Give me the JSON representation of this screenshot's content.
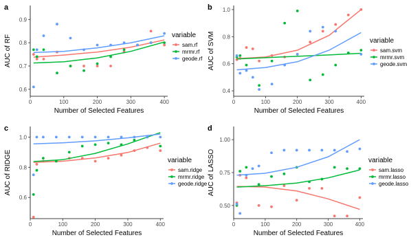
{
  "figure": {
    "legend_title": "variable",
    "colors": {
      "sam": "#F8766D",
      "mrmr": "#00BA38",
      "geode": "#619CFF"
    }
  },
  "chart_data": [
    {
      "tag": "a",
      "type": "scatter",
      "xlabel": "Number of Selected Features",
      "ylabel": "AUC of RF",
      "xlim": [
        0,
        410
      ],
      "ylim": [
        0.57,
        0.96
      ],
      "xticks": [
        0,
        100,
        200,
        300,
        400
      ],
      "yticks": [
        0.6,
        0.7,
        0.8,
        0.9
      ],
      "yticklabels": [
        "0.6",
        "0.7",
        "0.8",
        "0.9"
      ],
      "legend_position": "right",
      "series": [
        {
          "name": "sam.rf",
          "key": "sam",
          "points": [
            [
              10,
              0.75
            ],
            [
              20,
              0.73
            ],
            [
              40,
              0.73
            ],
            [
              80,
              0.76
            ],
            [
              120,
              0.7
            ],
            [
              160,
              0.7
            ],
            [
              200,
              0.7
            ],
            [
              240,
              0.7
            ],
            [
              280,
              0.76
            ],
            [
              320,
              0.79
            ],
            [
              360,
              0.85
            ],
            [
              400,
              0.79
            ]
          ],
          "fit": [
            [
              10,
              0.738
            ],
            [
              100,
              0.747
            ],
            [
              200,
              0.76
            ],
            [
              300,
              0.781
            ],
            [
              400,
              0.812
            ]
          ]
        },
        {
          "name": "mrmr.rf",
          "key": "mrmr",
          "points": [
            [
              10,
              0.77
            ],
            [
              20,
              0.74
            ],
            [
              40,
              0.77
            ],
            [
              80,
              0.67
            ],
            [
              120,
              0.7
            ],
            [
              160,
              0.68
            ],
            [
              200,
              0.71
            ],
            [
              240,
              0.74
            ],
            [
              280,
              0.77
            ],
            [
              320,
              0.79
            ],
            [
              360,
              0.8
            ],
            [
              400,
              0.8
            ]
          ],
          "fit": [
            [
              10,
              0.713
            ],
            [
              100,
              0.718
            ],
            [
              200,
              0.735
            ],
            [
              300,
              0.763
            ],
            [
              400,
              0.803
            ]
          ]
        },
        {
          "name": "geode.rf",
          "key": "geode",
          "points": [
            [
              10,
              0.61
            ],
            [
              20,
              0.77
            ],
            [
              40,
              0.83
            ],
            [
              80,
              0.88
            ],
            [
              120,
              0.82
            ],
            [
              160,
              0.77
            ],
            [
              200,
              0.79
            ],
            [
              240,
              0.79
            ],
            [
              280,
              0.8
            ],
            [
              320,
              0.79
            ],
            [
              360,
              0.8
            ],
            [
              400,
              0.84
            ]
          ],
          "fit": [
            [
              10,
              0.758
            ],
            [
              100,
              0.763
            ],
            [
              200,
              0.778
            ],
            [
              300,
              0.8
            ],
            [
              400,
              0.83
            ]
          ]
        }
      ]
    },
    {
      "tag": "b",
      "type": "scatter",
      "xlabel": "Number of Selected Features",
      "ylabel": "AUC of SVM",
      "xlim": [
        0,
        410
      ],
      "ylim": [
        0.36,
        1.03
      ],
      "xticks": [
        0,
        100,
        200,
        300,
        400
      ],
      "yticks": [
        0.4,
        0.6,
        0.8,
        1.0
      ],
      "yticklabels": [
        "0.4",
        "0.6",
        "0.8",
        "1.0"
      ],
      "legend_position": "right",
      "series": [
        {
          "name": "sam.svm",
          "key": "sam",
          "points": [
            [
              10,
              0.63
            ],
            [
              20,
              0.64
            ],
            [
              40,
              0.72
            ],
            [
              60,
              0.71
            ],
            [
              80,
              0.62
            ],
            [
              120,
              0.66
            ],
            [
              160,
              0.65
            ],
            [
              200,
              0.67
            ],
            [
              240,
              0.76
            ],
            [
              280,
              0.84
            ],
            [
              320,
              0.89
            ],
            [
              360,
              0.96
            ],
            [
              400,
              1.0
            ]
          ],
          "fit": [
            [
              10,
              0.638
            ],
            [
              100,
              0.65
            ],
            [
              200,
              0.7
            ],
            [
              300,
              0.81
            ],
            [
              400,
              1.0
            ]
          ]
        },
        {
          "name": "mrmr.svm",
          "key": "mrmr",
          "points": [
            [
              10,
              0.65
            ],
            [
              20,
              0.66
            ],
            [
              40,
              0.59
            ],
            [
              80,
              0.44
            ],
            [
              120,
              0.62
            ],
            [
              160,
              0.9
            ],
            [
              200,
              0.99
            ],
            [
              240,
              0.48
            ],
            [
              280,
              0.52
            ],
            [
              320,
              0.59
            ],
            [
              360,
              0.68
            ],
            [
              400,
              0.7
            ]
          ],
          "fit": [
            [
              10,
              0.635
            ],
            [
              100,
              0.645
            ],
            [
              200,
              0.655
            ],
            [
              300,
              0.665
            ],
            [
              400,
              0.677
            ]
          ]
        },
        {
          "name": "geode.svm",
          "key": "geode",
          "points": [
            [
              10,
              0.66
            ],
            [
              20,
              0.53
            ],
            [
              40,
              0.55
            ],
            [
              60,
              0.5
            ],
            [
              80,
              0.41
            ],
            [
              120,
              0.45
            ],
            [
              160,
              0.59
            ],
            [
              200,
              0.67
            ],
            [
              240,
              0.84
            ],
            [
              280,
              0.87
            ],
            [
              320,
              0.84
            ],
            [
              400,
              0.67
            ]
          ],
          "fit": [
            [
              10,
              0.555
            ],
            [
              100,
              0.572
            ],
            [
              200,
              0.615
            ],
            [
              300,
              0.7
            ],
            [
              400,
              0.83
            ]
          ]
        }
      ]
    },
    {
      "tag": "c",
      "type": "scatter",
      "xlabel": "Number of Selected Features",
      "ylabel": "AUC of RIDGE",
      "xlim": [
        0,
        410
      ],
      "ylim": [
        0.46,
        1.07
      ],
      "xticks": [
        0,
        100,
        200,
        300,
        400
      ],
      "yticks": [
        0.6,
        0.8,
        1.0
      ],
      "yticklabels": [
        "0.6",
        "0.8",
        "1.0"
      ],
      "legend_position": "right",
      "series": [
        {
          "name": "sam.ridge",
          "key": "sam",
          "points": [
            [
              10,
              0.47
            ],
            [
              20,
              0.82
            ],
            [
              40,
              0.84
            ],
            [
              80,
              0.84
            ],
            [
              120,
              0.86
            ],
            [
              160,
              0.86
            ],
            [
              200,
              0.84
            ],
            [
              240,
              0.86
            ],
            [
              280,
              0.88
            ],
            [
              320,
              0.91
            ],
            [
              360,
              0.93
            ],
            [
              400,
              0.91
            ]
          ],
          "fit": [
            [
              10,
              0.833
            ],
            [
              100,
              0.84
            ],
            [
              200,
              0.862
            ],
            [
              300,
              0.898
            ],
            [
              400,
              0.96
            ]
          ]
        },
        {
          "name": "mrmr.ridge",
          "key": "mrmr",
          "points": [
            [
              10,
              0.62
            ],
            [
              20,
              0.78
            ],
            [
              40,
              0.86
            ],
            [
              80,
              0.84
            ],
            [
              120,
              0.9
            ],
            [
              160,
              0.94
            ],
            [
              200,
              0.95
            ],
            [
              240,
              0.96
            ],
            [
              280,
              0.95
            ],
            [
              320,
              0.98
            ],
            [
              360,
              1.0
            ],
            [
              400,
              0.94
            ]
          ],
          "fit": [
            [
              10,
              0.838
            ],
            [
              100,
              0.85
            ],
            [
              200,
              0.892
            ],
            [
              300,
              0.955
            ],
            [
              400,
              1.03
            ]
          ]
        },
        {
          "name": "geode.ridge",
          "key": "geode",
          "points": [
            [
              10,
              0.75
            ],
            [
              20,
              1.0
            ],
            [
              40,
              1.0
            ],
            [
              80,
              1.0
            ],
            [
              120,
              1.0
            ],
            [
              160,
              1.0
            ],
            [
              200,
              1.0
            ],
            [
              240,
              1.0
            ],
            [
              280,
              1.0
            ],
            [
              320,
              1.0
            ],
            [
              360,
              1.0
            ],
            [
              400,
              1.0
            ]
          ],
          "fit": [
            [
              10,
              0.955
            ],
            [
              100,
              0.962
            ],
            [
              200,
              0.975
            ],
            [
              300,
              0.995
            ],
            [
              400,
              1.02
            ]
          ]
        }
      ]
    },
    {
      "tag": "d",
      "type": "scatter",
      "xlabel": "Number of Selected Features",
      "ylabel": "AUC of LASSO",
      "xlim": [
        0,
        410
      ],
      "ylim": [
        0.4,
        1.1
      ],
      "xticks": [
        0,
        100,
        200,
        300,
        400
      ],
      "yticks": [
        0.5,
        0.75,
        1.0
      ],
      "yticklabels": [
        "0.50",
        "0.75",
        "1.00"
      ],
      "legend_position": "right",
      "series": [
        {
          "name": "sam.lasso",
          "key": "sam",
          "points": [
            [
              10,
              0.52
            ],
            [
              20,
              0.73
            ],
            [
              40,
              0.71
            ],
            [
              80,
              0.5
            ],
            [
              120,
              0.49
            ],
            [
              160,
              0.65
            ],
            [
              200,
              0.54
            ],
            [
              240,
              0.63
            ],
            [
              280,
              0.63
            ],
            [
              320,
              0.42
            ],
            [
              360,
              0.42
            ],
            [
              400,
              0.56
            ]
          ],
          "fit": [
            [
              10,
              0.645
            ],
            [
              100,
              0.64
            ],
            [
              200,
              0.61
            ],
            [
              300,
              0.55
            ],
            [
              400,
              0.47
            ]
          ]
        },
        {
          "name": "mrmr.lasso",
          "key": "mrmr",
          "points": [
            [
              10,
              0.5
            ],
            [
              20,
              0.76
            ],
            [
              40,
              0.79
            ],
            [
              80,
              0.66
            ],
            [
              120,
              0.72
            ],
            [
              160,
              0.74
            ],
            [
              200,
              0.79
            ],
            [
              240,
              0.68
            ],
            [
              280,
              0.7
            ],
            [
              320,
              0.79
            ],
            [
              360,
              0.78
            ],
            [
              400,
              0.78
            ]
          ],
          "fit": [
            [
              10,
              0.64
            ],
            [
              100,
              0.65
            ],
            [
              200,
              0.67
            ],
            [
              300,
              0.71
            ],
            [
              400,
              0.77
            ]
          ]
        },
        {
          "name": "geode.lasso",
          "key": "geode",
          "points": [
            [
              10,
              0.51
            ],
            [
              20,
              0.44
            ],
            [
              40,
              0.73
            ],
            [
              60,
              0.78
            ],
            [
              80,
              0.8
            ],
            [
              120,
              0.9
            ],
            [
              160,
              0.92
            ],
            [
              200,
              0.92
            ],
            [
              240,
              0.92
            ],
            [
              280,
              0.92
            ],
            [
              320,
              0.92
            ],
            [
              360,
              0.91
            ],
            [
              400,
              0.93
            ]
          ],
          "fit": [
            [
              10,
              0.73
            ],
            [
              100,
              0.745
            ],
            [
              200,
              0.79
            ],
            [
              300,
              0.87
            ],
            [
              400,
              1.0
            ]
          ]
        }
      ]
    }
  ]
}
